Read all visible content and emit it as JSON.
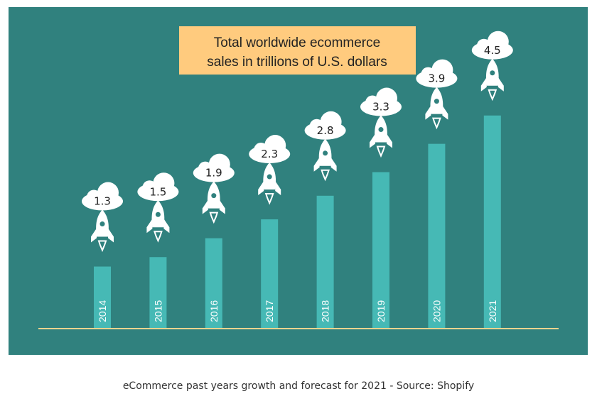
{
  "caption": "eCommerce past years growth and forecast for 2021 - Source: Shopify",
  "colors": {
    "panel": "#30817E",
    "bar": "#46B9B5",
    "title_box": "#FFCB7E",
    "baseline": "#F3D48E",
    "cloud": "#FFFFFF",
    "rocket": "#FFFFFF",
    "label_text": "#222222"
  },
  "chart_data": {
    "type": "bar",
    "title_lines": [
      "Total worldwide ecommerce",
      "sales in trillions of U.S. dollars"
    ],
    "categories": [
      "2014",
      "2015",
      "2016",
      "2017",
      "2018",
      "2019",
      "2020",
      "2021"
    ],
    "values": [
      1.3,
      1.5,
      1.9,
      2.3,
      2.8,
      3.3,
      3.9,
      4.5
    ],
    "value_labels": [
      "1.3",
      "1.5",
      "1.9",
      "2.3",
      "2.8",
      "3.3",
      "3.9",
      "4.5"
    ],
    "xlabel": "",
    "ylabel": "",
    "ylim": [
      0,
      5.2
    ],
    "grid": false,
    "marker_icon": "rocket-icon",
    "label_icon": "cloud-icon"
  }
}
